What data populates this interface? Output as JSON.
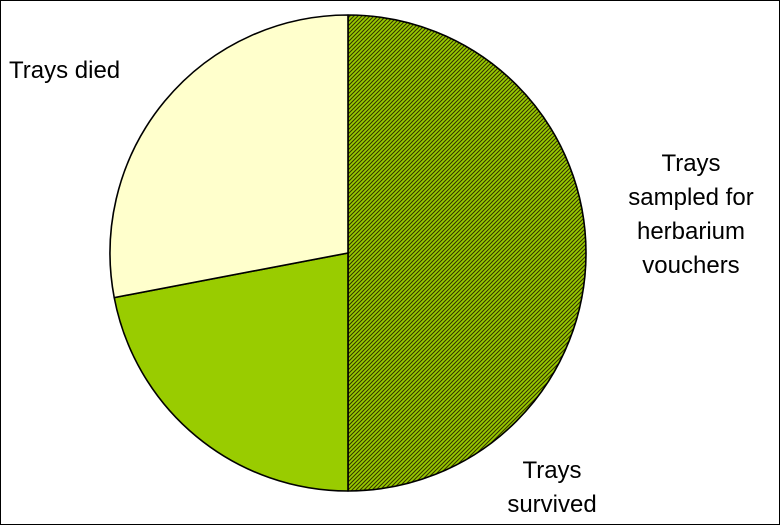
{
  "chart_data": {
    "type": "pie",
    "title": "",
    "slices": [
      {
        "label": "Trays sampled for herbarium vouchers",
        "display_label": "Trays\nsampled for\nherbarium\nvouchers",
        "value": 50,
        "color": "#99cc00",
        "pattern": "hatched"
      },
      {
        "label": "Trays survived",
        "display_label": "Trays\nsurvived",
        "value": 22,
        "color": "#99cc00",
        "pattern": "solid"
      },
      {
        "label": "Trays died",
        "display_label": "Trays died",
        "value": 28,
        "color": "#ffffcc",
        "pattern": "solid"
      }
    ],
    "start_angle_deg": 0,
    "direction": "clockwise",
    "legend": "none"
  }
}
